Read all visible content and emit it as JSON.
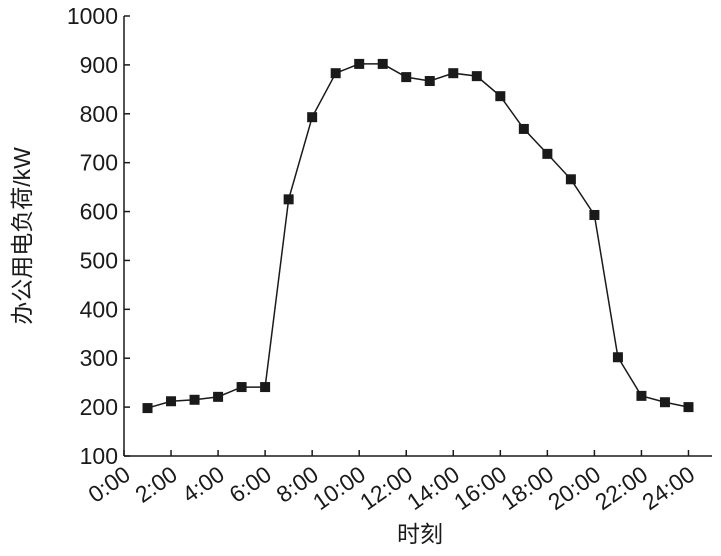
{
  "chart_data": {
    "type": "line",
    "x_label": "时刻",
    "y_label": "办公用电负荷/kW",
    "x": [
      1,
      2,
      3,
      4,
      5,
      6,
      7,
      8,
      9,
      10,
      11,
      12,
      13,
      14,
      15,
      16,
      17,
      18,
      19,
      20,
      21,
      22,
      23,
      24
    ],
    "series": [
      {
        "name": "办公用电负荷",
        "color": "#1a1a1a",
        "values": [
          198,
          212,
          215,
          221,
          241,
          241,
          625,
          793,
          883,
          902,
          902,
          875,
          867,
          883,
          877,
          836,
          769,
          718,
          666,
          593,
          302,
          223,
          210,
          200
        ]
      }
    ],
    "xlim": [
      0,
      25
    ],
    "xticks": [
      {
        "value": 0,
        "label": "0:00"
      },
      {
        "value": 2,
        "label": "2:00"
      },
      {
        "value": 4,
        "label": "4:00"
      },
      {
        "value": 6,
        "label": "6:00"
      },
      {
        "value": 8,
        "label": "8:00"
      },
      {
        "value": 10,
        "label": "10:00"
      },
      {
        "value": 12,
        "label": "12:00"
      },
      {
        "value": 14,
        "label": "14:00"
      },
      {
        "value": 16,
        "label": "16:00"
      },
      {
        "value": 18,
        "label": "18:00"
      },
      {
        "value": 20,
        "label": "20:00"
      },
      {
        "value": 22,
        "label": "22:00"
      },
      {
        "value": 24,
        "label": "24:00"
      }
    ],
    "ylim": [
      100,
      1000
    ],
    "yticks": [
      100,
      200,
      300,
      400,
      500,
      600,
      700,
      800,
      900,
      1000
    ],
    "grid": false,
    "marker": "square"
  }
}
